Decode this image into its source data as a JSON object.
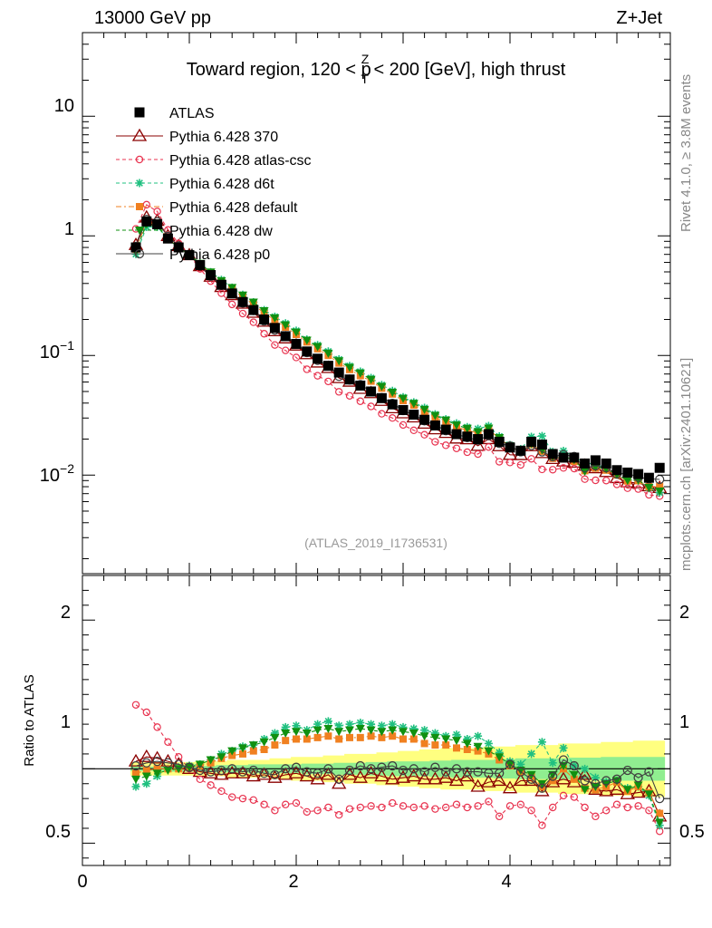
{
  "header": {
    "energy": "13000 GeV pp",
    "process": "Z+Jet"
  },
  "side": {
    "rivet": "Rivet 4.1.0, ≥ 3.8M events",
    "mcplots": "mcplots.cern.ch [arXiv:2401.10621]"
  },
  "chart_data": {
    "type": "scatter",
    "title": "Toward region, 120 < p_T^Z < 200 [GeV], high thrust",
    "title_parts": {
      "pre": "Toward region, 120 < p",
      "sup": "Z",
      "sub": "T",
      "post": " < 200 [GeV], high thrust"
    },
    "analysis_tag": "(ATLAS_2019_I1736531)",
    "xlabel": "",
    "ylabel_main": "",
    "ylabel_ratio": "Ratio to ATLAS",
    "xlim": [
      0,
      5.5
    ],
    "ylim_main": [
      0.0015,
      50
    ],
    "ylim_ratio": [
      0.35,
      2.3
    ],
    "x_ticks": [
      "0",
      "2",
      "4"
    ],
    "y_ticks_main": [
      "10",
      "1",
      "10^-1",
      "10^-2"
    ],
    "y_ticks_ratio": [
      "2",
      "1",
      "0.5"
    ],
    "legend": [
      "ATLAS",
      "Pythia 6.428 370",
      "Pythia 6.428 atlas-csc",
      "Pythia 6.428 d6t",
      "Pythia 6.428 default",
      "Pythia 6.428 dw",
      "Pythia 6.428 p0"
    ],
    "colors": {
      "data": "#000000",
      "p370": "#8b0000",
      "atlascsc": "#e8334f",
      "d6t": "#20c080",
      "default": "#f08020",
      "dw": "#109010",
      "p0": "#404040",
      "band_yellow": "#ffff80",
      "band_green": "#90ee90"
    },
    "x": [
      0.5,
      0.6,
      0.7,
      0.8,
      0.9,
      1.0,
      1.1,
      1.2,
      1.3,
      1.4,
      1.5,
      1.6,
      1.7,
      1.8,
      1.9,
      2.0,
      2.1,
      2.2,
      2.3,
      2.4,
      2.5,
      2.6,
      2.7,
      2.8,
      2.9,
      3.0,
      3.1,
      3.2,
      3.3,
      3.4,
      3.5,
      3.6,
      3.7,
      3.8,
      3.9,
      4.0,
      4.1,
      4.2,
      4.3,
      4.4,
      4.5,
      4.6,
      4.7,
      4.8,
      4.9,
      5.0,
      5.1,
      5.2,
      5.3,
      5.4
    ],
    "data_values": [
      0.8,
      1.32,
      1.25,
      0.95,
      0.8,
      0.69,
      0.57,
      0.47,
      0.39,
      0.33,
      0.28,
      0.24,
      0.2,
      0.17,
      0.145,
      0.125,
      0.108,
      0.094,
      0.082,
      0.072,
      0.063,
      0.056,
      0.05,
      0.044,
      0.039,
      0.035,
      0.032,
      0.029,
      0.026,
      0.024,
      0.022,
      0.021,
      0.02,
      0.022,
      0.019,
      0.017,
      0.016,
      0.019,
      0.018,
      0.015,
      0.014,
      0.014,
      0.0125,
      0.0133,
      0.0125,
      0.011,
      0.0105,
      0.0102,
      0.0095,
      0.0115
    ],
    "series": [
      {
        "name": "Pythia 6.428 370",
        "key": "p370",
        "ratio": [
          1.05,
          1.08,
          1.07,
          1.05,
          1.03,
          1.0,
          0.98,
          0.97,
          0.96,
          0.97,
          0.97,
          0.95,
          0.96,
          0.94,
          0.96,
          0.97,
          0.95,
          0.93,
          0.96,
          0.9,
          0.96,
          0.94,
          0.97,
          0.95,
          0.93,
          0.94,
          0.95,
          0.93,
          0.93,
          0.94,
          0.92,
          0.95,
          0.88,
          0.91,
          0.92,
          0.87,
          0.92,
          0.92,
          0.85,
          0.91,
          0.93,
          0.91,
          0.96,
          0.86,
          0.85,
          0.86,
          0.83,
          0.84,
          0.85,
          0.68
        ]
      },
      {
        "name": "Pythia 6.428 atlas-csc",
        "key": "atlascsc",
        "ratio": [
          1.43,
          1.38,
          1.28,
          1.18,
          1.08,
          1.0,
          0.93,
          0.89,
          0.85,
          0.81,
          0.8,
          0.79,
          0.76,
          0.72,
          0.76,
          0.77,
          0.71,
          0.72,
          0.74,
          0.69,
          0.73,
          0.74,
          0.75,
          0.74,
          0.77,
          0.75,
          0.74,
          0.75,
          0.73,
          0.74,
          0.76,
          0.74,
          0.75,
          0.78,
          0.68,
          0.75,
          0.76,
          0.72,
          0.62,
          0.74,
          0.82,
          0.81,
          0.74,
          0.68,
          0.72,
          0.76,
          0.74,
          0.75,
          0.72,
          0.58
        ]
      },
      {
        "name": "Pythia 6.428 d6t",
        "key": "d6t",
        "ratio": [
          0.88,
          0.9,
          0.95,
          1.0,
          1.01,
          1.02,
          1.03,
          1.06,
          1.1,
          1.12,
          1.15,
          1.16,
          1.2,
          1.24,
          1.28,
          1.29,
          1.26,
          1.3,
          1.32,
          1.29,
          1.3,
          1.31,
          1.3,
          1.29,
          1.3,
          1.28,
          1.27,
          1.26,
          1.24,
          1.22,
          1.23,
          1.2,
          1.22,
          1.17,
          1.11,
          1.05,
          1.03,
          1.1,
          1.18,
          1.04,
          1.14,
          1.02,
          1.0,
          0.94,
          0.91,
          0.92,
          0.87,
          0.88,
          0.82,
          0.62
        ]
      },
      {
        "name": "Pythia 6.428 default",
        "key": "default",
        "ratio": [
          0.97,
          0.99,
          1.0,
          1.0,
          1.0,
          1.01,
          1.02,
          1.04,
          1.07,
          1.09,
          1.1,
          1.12,
          1.13,
          1.16,
          1.19,
          1.2,
          1.2,
          1.21,
          1.22,
          1.2,
          1.21,
          1.21,
          1.22,
          1.21,
          1.22,
          1.2,
          1.2,
          1.17,
          1.16,
          1.16,
          1.14,
          1.13,
          1.12,
          1.1,
          1.06,
          1.02,
          0.98,
          0.95,
          0.88,
          0.92,
          1.0,
          0.93,
          0.87,
          0.86,
          0.88,
          0.91,
          0.85,
          0.88,
          0.84,
          0.7
        ]
      },
      {
        "name": "Pythia 6.428 dw",
        "key": "dw",
        "ratio": [
          0.93,
          0.95,
          0.97,
          0.99,
          1.0,
          1.01,
          1.03,
          1.06,
          1.08,
          1.12,
          1.14,
          1.16,
          1.18,
          1.21,
          1.24,
          1.25,
          1.24,
          1.26,
          1.27,
          1.25,
          1.26,
          1.27,
          1.26,
          1.25,
          1.26,
          1.25,
          1.24,
          1.22,
          1.21,
          1.2,
          1.19,
          1.17,
          1.15,
          1.12,
          1.08,
          1.03,
          0.99,
          0.96,
          0.9,
          0.96,
          1.02,
          0.96,
          0.86,
          0.88,
          0.9,
          0.92,
          0.86,
          0.89,
          0.83,
          0.64
        ]
      },
      {
        "name": "Pythia 6.428 p0",
        "key": "p0",
        "ratio": [
          1.02,
          1.04,
          1.05,
          1.04,
          1.03,
          1.01,
          0.99,
          0.98,
          0.99,
          1.0,
          0.98,
          0.99,
          0.97,
          0.96,
          1.0,
          1.01,
          0.98,
          0.97,
          1.0,
          0.93,
          0.99,
          1.02,
          1.0,
          1.01,
          1.02,
          0.99,
          1.0,
          0.98,
          1.01,
          0.98,
          1.0,
          0.98,
          0.98,
          0.97,
          0.97,
          1.03,
          0.98,
          0.93,
          0.87,
          0.95,
          1.06,
          1.02,
          0.92,
          0.9,
          0.92,
          0.93,
          0.99,
          0.94,
          0.98,
          0.8
        ]
      }
    ],
    "band_outer_half": [
      0.045,
      0.045,
      0.045,
      0.045,
      0.045,
      0.045,
      0.05,
      0.05,
      0.05,
      0.06,
      0.06,
      0.06,
      0.06,
      0.07,
      0.07,
      0.08,
      0.08,
      0.08,
      0.09,
      0.09,
      0.1,
      0.1,
      0.1,
      0.11,
      0.11,
      0.12,
      0.12,
      0.13,
      0.13,
      0.14,
      0.14,
      0.14,
      0.14,
      0.15,
      0.15,
      0.15,
      0.16,
      0.16,
      0.16,
      0.16,
      0.17,
      0.17,
      0.17,
      0.17,
      0.18,
      0.18,
      0.18,
      0.19,
      0.19,
      0.19
    ],
    "band_inner_half": [
      0.015,
      0.015,
      0.015,
      0.02,
      0.02,
      0.02,
      0.02,
      0.02,
      0.025,
      0.025,
      0.025,
      0.03,
      0.03,
      0.03,
      0.03,
      0.03,
      0.035,
      0.035,
      0.035,
      0.04,
      0.04,
      0.04,
      0.045,
      0.045,
      0.05,
      0.05,
      0.05,
      0.05,
      0.055,
      0.055,
      0.06,
      0.06,
      0.06,
      0.06,
      0.065,
      0.065,
      0.07,
      0.07,
      0.07,
      0.07,
      0.07,
      0.075,
      0.075,
      0.075,
      0.08,
      0.08,
      0.08,
      0.08,
      0.08,
      0.08
    ]
  }
}
